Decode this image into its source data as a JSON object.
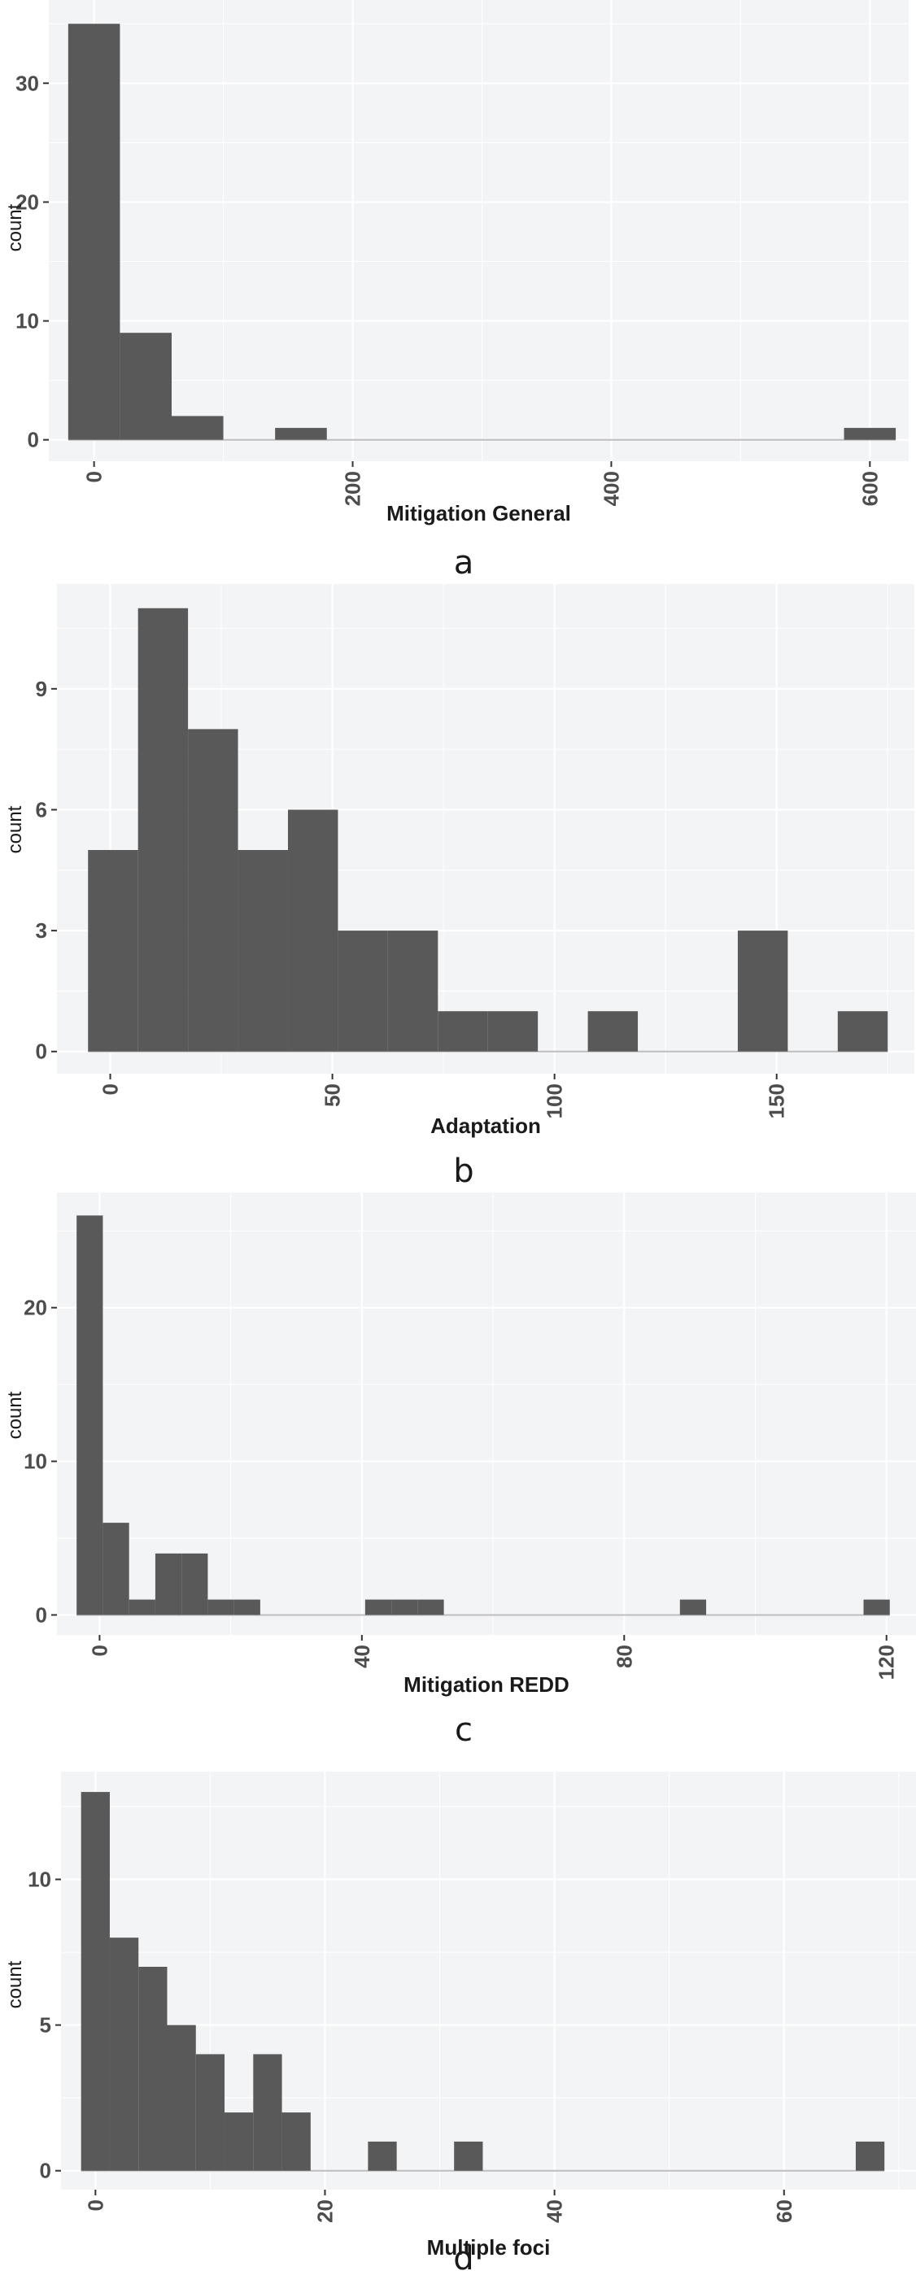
{
  "colors": {
    "panel_background": "#f3f4f6",
    "grid_major": "#ffffff",
    "bar_fill": "#595959",
    "baseline": "#bdbdbd",
    "text_dark": "#1a1a1a",
    "tick_text": "#4d4d4d"
  },
  "chart_data": [
    {
      "type": "bar",
      "panel_letter": "a",
      "xlabel": "Mitigation General",
      "ylabel": "count",
      "grid": true,
      "xlim": [
        -35,
        630
      ],
      "ylim": [
        -1.8,
        37
      ],
      "x_ticks": [
        0,
        200,
        400,
        600
      ],
      "y_ticks": [
        0,
        10,
        20,
        30
      ],
      "x_ticks_rotated": true,
      "bins": [
        {
          "x0": -20,
          "x1": 20,
          "count": 35
        },
        {
          "x0": 20,
          "x1": 60,
          "count": 9
        },
        {
          "x0": 60,
          "x1": 100,
          "count": 2
        },
        {
          "x0": 100,
          "x1": 140,
          "count": 0
        },
        {
          "x0": 140,
          "x1": 180,
          "count": 1
        },
        {
          "x0": 180,
          "x1": 580,
          "count": 0
        },
        {
          "x0": 580,
          "x1": 620,
          "count": 1
        }
      ]
    },
    {
      "type": "bar",
      "panel_letter": "b",
      "xlabel": "Adaptation",
      "ylabel": "count",
      "grid": true,
      "xlim": [
        -12,
        181
      ],
      "ylim": [
        -0.55,
        11.6
      ],
      "x_ticks": [
        0,
        50,
        100,
        150
      ],
      "y_ticks": [
        0,
        3,
        6,
        9
      ],
      "x_ticks_rotated": true,
      "bins": [
        {
          "x0": -5,
          "x1": 6.25,
          "count": 5
        },
        {
          "x0": 6.25,
          "x1": 17.5,
          "count": 11
        },
        {
          "x0": 17.5,
          "x1": 28.75,
          "count": 8
        },
        {
          "x0": 28.75,
          "x1": 40,
          "count": 5
        },
        {
          "x0": 40,
          "x1": 51.25,
          "count": 6
        },
        {
          "x0": 51.25,
          "x1": 62.5,
          "count": 3
        },
        {
          "x0": 62.5,
          "x1": 73.75,
          "count": 3
        },
        {
          "x0": 73.75,
          "x1": 85,
          "count": 1
        },
        {
          "x0": 85,
          "x1": 96.25,
          "count": 1
        },
        {
          "x0": 96.25,
          "x1": 107.5,
          "count": 0
        },
        {
          "x0": 107.5,
          "x1": 118.75,
          "count": 1
        },
        {
          "x0": 118.75,
          "x1": 141.25,
          "count": 0
        },
        {
          "x0": 141.25,
          "x1": 152.5,
          "count": 3
        },
        {
          "x0": 152.5,
          "x1": 163.75,
          "count": 0
        },
        {
          "x0": 163.75,
          "x1": 175,
          "count": 1
        }
      ]
    },
    {
      "type": "bar",
      "panel_letter": "c",
      "xlabel": "Mitigation REDD",
      "ylabel": "count",
      "grid": true,
      "xlim": [
        -6.5,
        124.5
      ],
      "ylim": [
        -1.3,
        27.5
      ],
      "x_ticks": [
        0,
        40,
        80,
        120
      ],
      "y_ticks": [
        0,
        10,
        20
      ],
      "x_ticks_rotated": true,
      "bins": [
        {
          "x0": -3.5,
          "x1": 0.5,
          "count": 26
        },
        {
          "x0": 0.5,
          "x1": 4.5,
          "count": 6
        },
        {
          "x0": 4.5,
          "x1": 8.5,
          "count": 1
        },
        {
          "x0": 8.5,
          "x1": 12.5,
          "count": 4
        },
        {
          "x0": 12.5,
          "x1": 16.5,
          "count": 4
        },
        {
          "x0": 16.5,
          "x1": 20.5,
          "count": 1
        },
        {
          "x0": 20.5,
          "x1": 24.5,
          "count": 1
        },
        {
          "x0": 24.5,
          "x1": 40.5,
          "count": 0
        },
        {
          "x0": 40.5,
          "x1": 44.5,
          "count": 1
        },
        {
          "x0": 44.5,
          "x1": 48.5,
          "count": 1
        },
        {
          "x0": 48.5,
          "x1": 52.5,
          "count": 1
        },
        {
          "x0": 52.5,
          "x1": 88.5,
          "count": 0
        },
        {
          "x0": 88.5,
          "x1": 92.5,
          "count": 1
        },
        {
          "x0": 92.5,
          "x1": 116.5,
          "count": 0
        },
        {
          "x0": 116.5,
          "x1": 120.5,
          "count": 1
        }
      ]
    },
    {
      "type": "bar",
      "panel_letter": "d",
      "xlabel": "Multiple foci",
      "ylabel": "count",
      "grid": true,
      "xlim": [
        -3,
        71.5
      ],
      "ylim": [
        -0.65,
        13.7
      ],
      "x_ticks": [
        0,
        20,
        40,
        60
      ],
      "y_ticks": [
        0,
        5,
        10
      ],
      "x_ticks_rotated": true,
      "bins": [
        {
          "x0": -1.25,
          "x1": 1.25,
          "count": 13
        },
        {
          "x0": 1.25,
          "x1": 3.75,
          "count": 8
        },
        {
          "x0": 3.75,
          "x1": 6.25,
          "count": 7
        },
        {
          "x0": 6.25,
          "x1": 8.75,
          "count": 5
        },
        {
          "x0": 8.75,
          "x1": 11.25,
          "count": 4
        },
        {
          "x0": 11.25,
          "x1": 13.75,
          "count": 2
        },
        {
          "x0": 13.75,
          "x1": 16.25,
          "count": 4
        },
        {
          "x0": 16.25,
          "x1": 18.75,
          "count": 2
        },
        {
          "x0": 18.75,
          "x1": 23.75,
          "count": 0
        },
        {
          "x0": 23.75,
          "x1": 26.25,
          "count": 1
        },
        {
          "x0": 26.25,
          "x1": 31.25,
          "count": 0
        },
        {
          "x0": 31.25,
          "x1": 33.75,
          "count": 1
        },
        {
          "x0": 33.75,
          "x1": 66.25,
          "count": 0
        },
        {
          "x0": 66.25,
          "x1": 68.75,
          "count": 1
        }
      ]
    }
  ]
}
